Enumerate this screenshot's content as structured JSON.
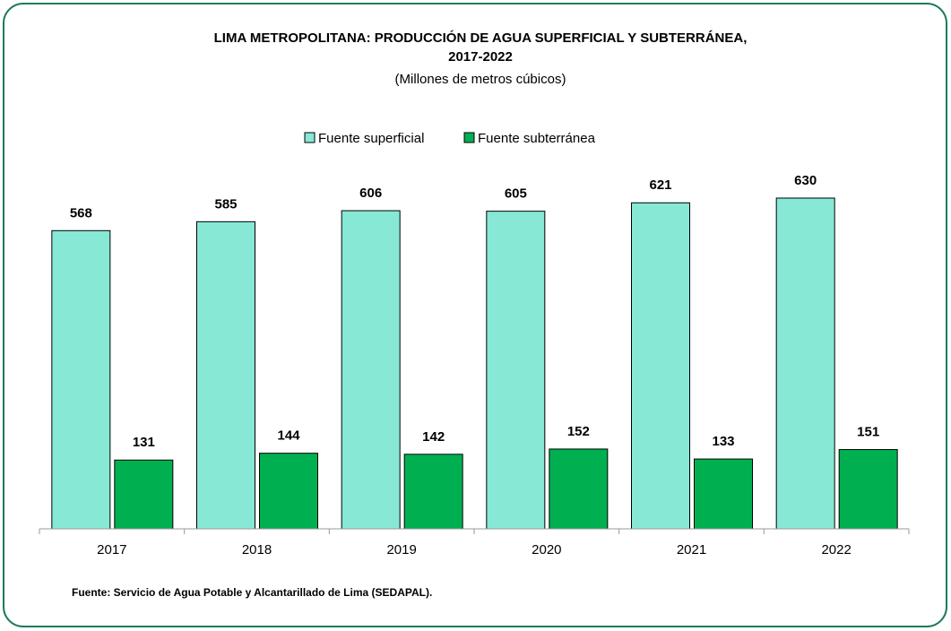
{
  "chart_data": {
    "type": "bar",
    "title": [
      "LIMA METROPOLITANA: PRODUCCIÓN DE AGUA SUPERFICIAL Y SUBTERRÁNEA,",
      "2017-2022"
    ],
    "subtitle": "(Millones de metros cúbicos)",
    "categories": [
      "2017",
      "2018",
      "2019",
      "2020",
      "2021",
      "2022"
    ],
    "series": [
      {
        "name": "Fuente superficial",
        "color": "#86e8d5",
        "values": [
          568,
          585,
          606,
          605,
          621,
          630
        ]
      },
      {
        "name": "Fuente subterránea",
        "color": "#00b050",
        "values": [
          131,
          144,
          142,
          152,
          133,
          151
        ]
      }
    ],
    "ylim": [
      0,
      700
    ],
    "legend": "top",
    "source": "Fuente: Servicio de Agua Potable y Alcantarillado de Lima (SEDAPAL)."
  }
}
